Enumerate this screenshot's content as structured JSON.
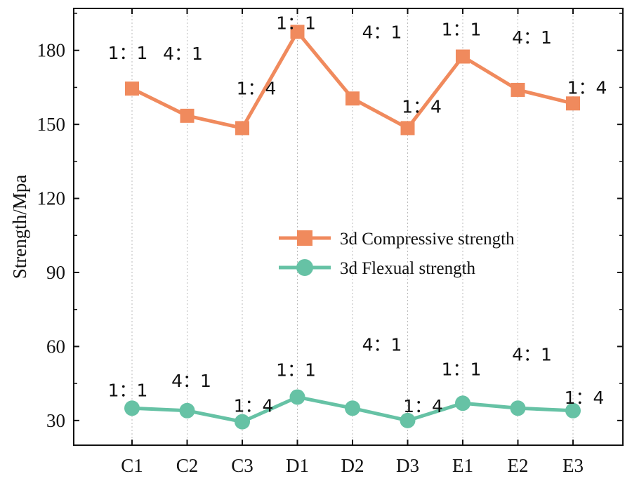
{
  "chart_data": {
    "type": "line",
    "title": "",
    "xlabel": "",
    "ylabel": "Strength/Mpa",
    "ylim": [
      20,
      197
    ],
    "yticks": [
      30,
      60,
      90,
      120,
      150,
      180
    ],
    "grid": "vertical-dotted",
    "legend_position": "center-right",
    "categories": [
      "C1",
      "C2",
      "C3",
      "D1",
      "D2",
      "D3",
      "E1",
      "E2",
      "E3"
    ],
    "series": [
      {
        "name": "3d Compressive strength",
        "color": "#F08A5D",
        "marker": "square",
        "values": [
          164.5,
          153.5,
          148.5,
          187.5,
          160.5,
          148.5,
          177.5,
          164,
          158.5
        ],
        "annotations": [
          "1：1",
          "4：1",
          "1：4",
          "1：1",
          "4：1",
          "1：4",
          "1：1",
          "4：1",
          "1：4"
        ]
      },
      {
        "name": "3d Flexual strength",
        "color": "#66C2A5",
        "marker": "circle",
        "values": [
          35,
          34,
          29.5,
          39.5,
          35,
          30,
          37,
          35,
          34
        ],
        "annotations": [
          "1：1",
          "4：1",
          "1：4",
          "1：1",
          "4：1",
          "1：4",
          "1：1",
          "4：1",
          "1：4"
        ]
      }
    ]
  }
}
